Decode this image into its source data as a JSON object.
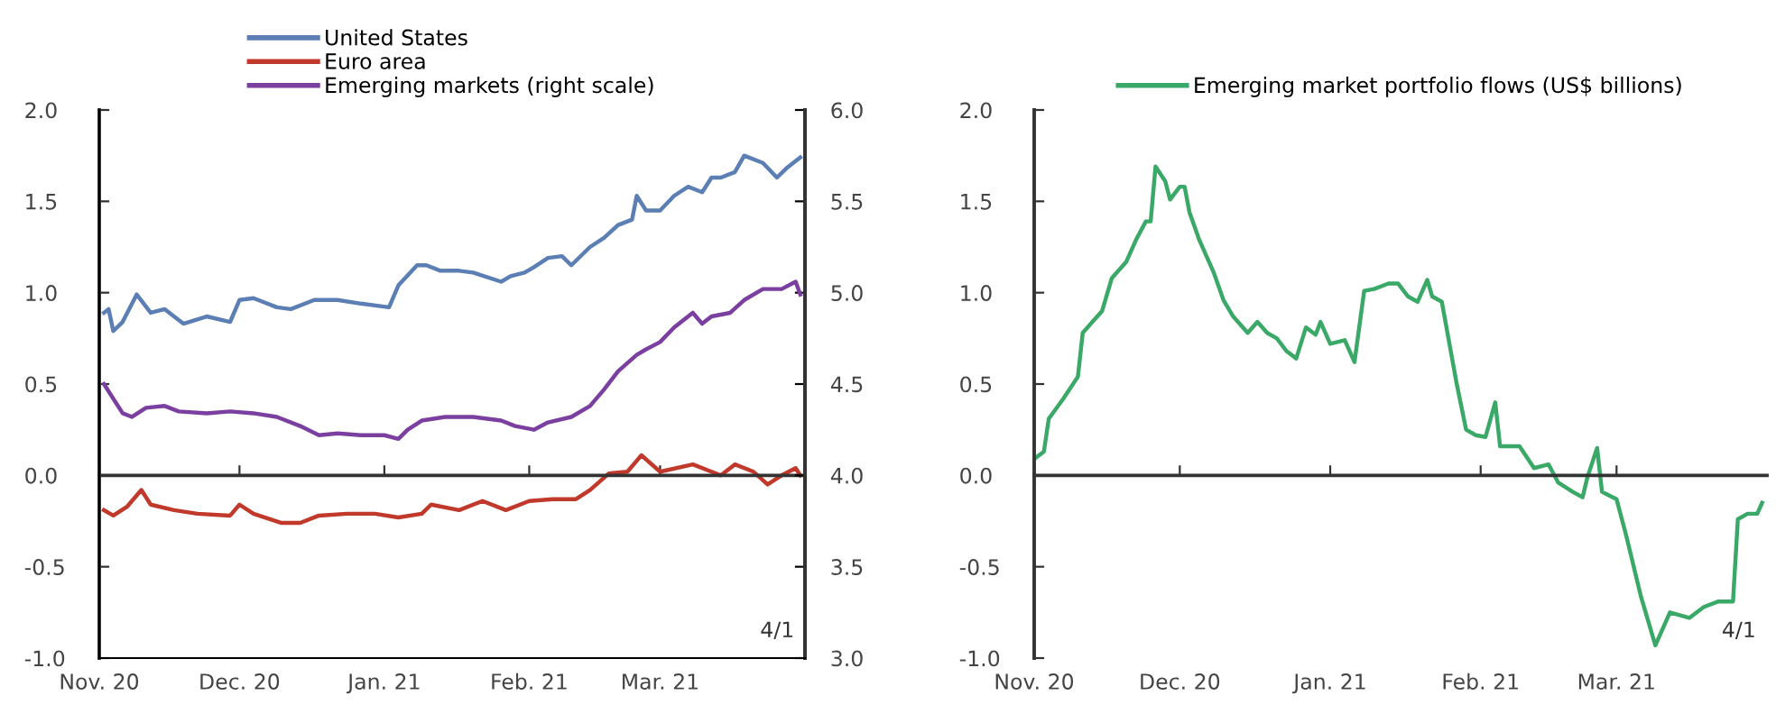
{
  "chart_data": [
    {
      "type": "line",
      "legend": "top",
      "annotations": [
        "4/1"
      ],
      "xlim": [
        "2020-11-01",
        "2021-04-01"
      ],
      "xticks": [
        {
          "value": "2020-11-01",
          "label": "Nov. 20"
        },
        {
          "value": "2020-12-01",
          "label": "Dec. 20"
        },
        {
          "value": "2021-01-01",
          "label": "Jan. 21"
        },
        {
          "value": "2021-02-01",
          "label": "Feb. 21"
        },
        {
          "value": "2021-03-01",
          "label": "Mar. 21"
        }
      ],
      "ylim": [
        -1,
        2
      ],
      "yticks": [
        {
          "value": -1,
          "label": "-1.0"
        },
        {
          "value": -0.5,
          "label": "-0.5"
        },
        {
          "value": 0,
          "label": "0.0"
        },
        {
          "value": 0.5,
          "label": "0.5"
        },
        {
          "value": 1,
          "label": "1.0"
        },
        {
          "value": 1.5,
          "label": "1.5"
        },
        {
          "value": 2,
          "label": "2.0"
        }
      ],
      "y2lim": [
        3,
        6
      ],
      "y2ticks": [
        {
          "value": 3,
          "label": "3.0"
        },
        {
          "value": 3.5,
          "label": "3.5"
        },
        {
          "value": 4,
          "label": "4.0"
        },
        {
          "value": 4.5,
          "label": "4.5"
        },
        {
          "value": 5,
          "label": "5.0"
        },
        {
          "value": 5.5,
          "label": "5.5"
        },
        {
          "value": 6,
          "label": "6.0"
        }
      ],
      "series": [
        {
          "name": "United States",
          "color": "#5b7fb5",
          "x": [
            "2020-11-02",
            "2020-11-03",
            "2020-11-04",
            "2020-11-06",
            "2020-11-09",
            "2020-11-12",
            "2020-11-15",
            "2020-11-19",
            "2020-11-24",
            "2020-11-29",
            "2020-12-01",
            "2020-12-04",
            "2020-12-09",
            "2020-12-12",
            "2020-12-17",
            "2020-12-22",
            "2020-12-27",
            "2021-01-02",
            "2021-01-04",
            "2021-01-08",
            "2021-01-10",
            "2021-01-13",
            "2021-01-17",
            "2021-01-20",
            "2021-01-26",
            "2021-01-28",
            "2021-01-31",
            "2021-02-02",
            "2021-02-05",
            "2021-02-08",
            "2021-02-10",
            "2021-02-14",
            "2021-02-17",
            "2021-02-20",
            "2021-02-23",
            "2021-02-24",
            "2021-02-26",
            "2021-03-01",
            "2021-03-04",
            "2021-03-07",
            "2021-03-10",
            "2021-03-12",
            "2021-03-14",
            "2021-03-17",
            "2021-03-19",
            "2021-03-23",
            "2021-03-26",
            "2021-03-28",
            "2021-03-31"
          ],
          "values": [
            0.89,
            0.91,
            0.79,
            0.84,
            0.99,
            0.89,
            0.91,
            0.83,
            0.87,
            0.84,
            0.96,
            0.97,
            0.92,
            0.91,
            0.96,
            0.96,
            0.94,
            0.92,
            1.04,
            1.15,
            1.15,
            1.12,
            1.12,
            1.11,
            1.06,
            1.09,
            1.11,
            1.14,
            1.19,
            1.2,
            1.15,
            1.25,
            1.3,
            1.37,
            1.4,
            1.53,
            1.45,
            1.45,
            1.53,
            1.58,
            1.55,
            1.63,
            1.63,
            1.66,
            1.75,
            1.71,
            1.63,
            1.68,
            1.74
          ]
        },
        {
          "name": "Euro area",
          "color": "#c0392b",
          "x": [
            "2020-11-02",
            "2020-11-04",
            "2020-11-07",
            "2020-11-10",
            "2020-11-12",
            "2020-11-17",
            "2020-11-22",
            "2020-11-29",
            "2020-12-01",
            "2020-12-04",
            "2020-12-10",
            "2020-12-14",
            "2020-12-18",
            "2020-12-24",
            "2020-12-30",
            "2021-01-04",
            "2021-01-09",
            "2021-01-11",
            "2021-01-17",
            "2021-01-22",
            "2021-01-27",
            "2021-02-01",
            "2021-02-06",
            "2021-02-11",
            "2021-02-14",
            "2021-02-18",
            "2021-02-22",
            "2021-02-25",
            "2021-03-01",
            "2021-03-08",
            "2021-03-12",
            "2021-03-14",
            "2021-03-17",
            "2021-03-21",
            "2021-03-24",
            "2021-03-27",
            "2021-03-30",
            "2021-03-31"
          ],
          "values": [
            -0.19,
            -0.22,
            -0.17,
            -0.08,
            -0.16,
            -0.19,
            -0.21,
            -0.22,
            -0.16,
            -0.21,
            -0.26,
            -0.26,
            -0.22,
            -0.21,
            -0.21,
            -0.23,
            -0.21,
            -0.16,
            -0.19,
            -0.14,
            -0.19,
            -0.14,
            -0.13,
            -0.13,
            -0.08,
            0.01,
            0.02,
            0.11,
            0.02,
            0.06,
            0.02,
            0.0,
            0.06,
            0.02,
            -0.05,
            0.0,
            0.04,
            0.0
          ]
        },
        {
          "name": "Emerging markets (right scale)",
          "color": "#7b3fa0",
          "axis": "y2",
          "x": [
            "2020-11-02",
            "2020-11-04",
            "2020-11-06",
            "2020-11-08",
            "2020-11-11",
            "2020-11-15",
            "2020-11-18",
            "2020-11-24",
            "2020-11-29",
            "2020-12-04",
            "2020-12-09",
            "2020-12-14",
            "2020-12-18",
            "2020-12-22",
            "2020-12-27",
            "2021-01-01",
            "2021-01-04",
            "2021-01-06",
            "2021-01-09",
            "2021-01-14",
            "2021-01-20",
            "2021-01-26",
            "2021-01-29",
            "2021-02-02",
            "2021-02-05",
            "2021-02-10",
            "2021-02-14",
            "2021-02-17",
            "2021-02-20",
            "2021-02-24",
            "2021-02-26",
            "2021-03-01",
            "2021-03-04",
            "2021-03-08",
            "2021-03-10",
            "2021-03-12",
            "2021-03-16",
            "2021-03-19",
            "2021-03-23",
            "2021-03-27",
            "2021-03-30",
            "2021-03-31"
          ],
          "values": [
            4.5,
            4.42,
            4.34,
            4.32,
            4.37,
            4.38,
            4.35,
            4.34,
            4.35,
            4.34,
            4.32,
            4.27,
            4.22,
            4.23,
            4.22,
            4.22,
            4.2,
            4.25,
            4.3,
            4.32,
            4.32,
            4.3,
            4.27,
            4.25,
            4.29,
            4.32,
            4.38,
            4.47,
            4.57,
            4.66,
            4.69,
            4.73,
            4.81,
            4.89,
            4.83,
            4.87,
            4.89,
            4.96,
            5.02,
            5.02,
            5.06,
            4.99
          ]
        }
      ]
    },
    {
      "type": "line",
      "legend": "top",
      "annotations": [
        "4/1"
      ],
      "xlim": [
        "2020-11-01",
        "2021-04-01"
      ],
      "xticks": [
        {
          "value": "2020-11-01",
          "label": "Nov. 20"
        },
        {
          "value": "2020-12-01",
          "label": "Dec. 20"
        },
        {
          "value": "2021-01-01",
          "label": "Jan. 21"
        },
        {
          "value": "2021-02-01",
          "label": "Feb. 21"
        },
        {
          "value": "2021-03-01",
          "label": "Mar. 21"
        }
      ],
      "ylim": [
        -1,
        2
      ],
      "yticks": [
        {
          "value": -1,
          "label": "-1.0"
        },
        {
          "value": -0.5,
          "label": "-0.5"
        },
        {
          "value": 0,
          "label": "0.0"
        },
        {
          "value": 0.5,
          "label": "0.5"
        },
        {
          "value": 1,
          "label": "1.0"
        },
        {
          "value": 1.5,
          "label": "1.5"
        },
        {
          "value": 2,
          "label": "2.0"
        }
      ],
      "series": [
        {
          "name": "Emerging market portfolio flows (US$ billions)",
          "color": "#3aa866",
          "x": [
            "2020-11-01",
            "2020-11-03",
            "2020-11-04",
            "2020-11-07",
            "2020-11-10",
            "2020-11-11",
            "2020-11-13",
            "2020-11-15",
            "2020-11-17",
            "2020-11-20",
            "2020-11-22",
            "2020-11-24",
            "2020-11-25",
            "2020-11-26",
            "2020-11-28",
            "2020-11-29",
            "2020-12-01",
            "2020-12-02",
            "2020-12-03",
            "2020-12-05",
            "2020-12-08",
            "2020-12-10",
            "2020-12-12",
            "2020-12-15",
            "2020-12-17",
            "2020-12-19",
            "2020-12-21",
            "2020-12-23",
            "2020-12-25",
            "2020-12-27",
            "2020-12-29",
            "2020-12-30",
            "2021-01-01",
            "2021-01-04",
            "2021-01-06",
            "2021-01-08",
            "2021-01-10",
            "2021-01-13",
            "2021-01-15",
            "2021-01-17",
            "2021-01-19",
            "2021-01-21",
            "2021-01-22",
            "2021-01-24",
            "2021-01-27",
            "2021-01-29",
            "2021-01-31",
            "2021-02-02",
            "2021-02-04",
            "2021-02-05",
            "2021-02-09",
            "2021-02-12",
            "2021-02-15",
            "2021-02-17",
            "2021-02-20",
            "2021-02-22",
            "2021-02-23",
            "2021-02-25",
            "2021-02-26",
            "2021-03-01",
            "2021-03-03",
            "2021-03-06",
            "2021-03-09",
            "2021-03-12",
            "2021-03-16",
            "2021-03-19",
            "2021-03-22",
            "2021-03-25",
            "2021-03-26",
            "2021-03-28",
            "2021-03-30",
            "2021-03-31"
          ],
          "values": [
            0.09,
            0.13,
            0.31,
            0.42,
            0.54,
            0.78,
            0.84,
            0.9,
            1.08,
            1.17,
            1.29,
            1.39,
            1.39,
            1.69,
            1.61,
            1.51,
            1.58,
            1.58,
            1.44,
            1.29,
            1.11,
            0.96,
            0.87,
            0.78,
            0.84,
            0.78,
            0.75,
            0.68,
            0.64,
            0.81,
            0.77,
            0.84,
            0.72,
            0.74,
            0.62,
            1.01,
            1.02,
            1.05,
            1.05,
            0.98,
            0.95,
            1.07,
            0.98,
            0.95,
            0.51,
            0.25,
            0.22,
            0.21,
            0.4,
            0.16,
            0.16,
            0.04,
            0.06,
            -0.04,
            -0.09,
            -0.12,
            -0.01,
            0.15,
            -0.09,
            -0.13,
            -0.33,
            -0.66,
            -0.93,
            -0.75,
            -0.78,
            -0.72,
            -0.69,
            -0.69,
            -0.24,
            -0.21,
            -0.21,
            -0.15
          ]
        }
      ]
    }
  ]
}
